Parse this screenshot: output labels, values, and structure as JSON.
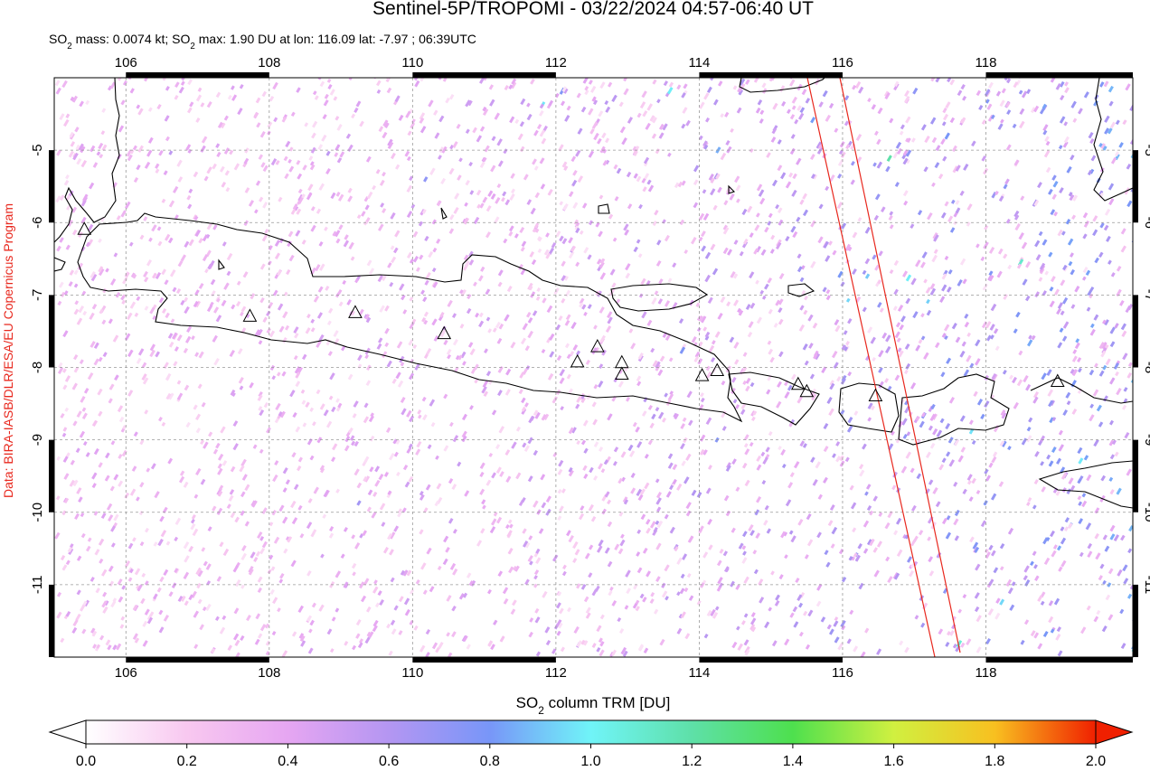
{
  "chart_data": {
    "type": "map",
    "title": "Sentinel-5P/TROPOMI - 03/22/2024 04:57-06:40 UT",
    "subtitle": [
      "SO",
      "2",
      " mass: 0.0074 kt; SO",
      "2",
      " max: 1.90 DU at lon: 116.09 lat: -7.97 ; 06:39UTC"
    ],
    "credit": "Data: BIRA-IASB/DLR/ESA/EU Copernicus Program",
    "xlim": [
      105,
      120.05
    ],
    "ylim": [
      -12,
      -4
    ],
    "xticks": [
      106,
      108,
      110,
      112,
      114,
      116,
      118
    ],
    "yticks": [
      -5,
      -6,
      -7,
      -8,
      -9,
      -10,
      -11
    ],
    "grid": true,
    "volcanoes": {
      "lon": [
        105.42,
        107.73,
        109.2,
        110.44,
        112.3,
        112.58,
        112.92,
        112.92,
        114.04,
        114.25,
        115.38,
        115.5,
        116.46,
        119.0
      ],
      "lat": [
        -6.1,
        -7.3,
        -7.25,
        -7.54,
        -7.93,
        -7.72,
        -7.94,
        -8.1,
        -8.12,
        -8.05,
        -8.24,
        -8.34,
        -8.4,
        -8.2
      ]
    },
    "colorbar": {
      "label": [
        "SO",
        "2",
        " column TRM [DU]"
      ],
      "lim": [
        0,
        2
      ],
      "ticks": [
        {
          "value": 0,
          "label": "0.0"
        },
        {
          "value": 0.2,
          "label": "0.2"
        },
        {
          "value": 0.4,
          "label": "0.4"
        },
        {
          "value": 0.6,
          "label": "0.6"
        },
        {
          "value": 0.8,
          "label": "0.8"
        },
        {
          "value": 1,
          "label": "1.0"
        },
        {
          "value": 1.2,
          "label": "1.2"
        },
        {
          "value": 1.4,
          "label": "1.4"
        },
        {
          "value": 1.6,
          "label": "1.6"
        },
        {
          "value": 1.8,
          "label": "1.8"
        },
        {
          "value": 2,
          "label": "2.0"
        }
      ],
      "colormap": [
        "#ffffff",
        "#f8c8f0",
        "#e6a6f2",
        "#b496f2",
        "#7896f8",
        "#70f4f8",
        "#5ee0a8",
        "#4ee04e",
        "#d0f040",
        "#f8c020",
        "#f02000"
      ]
    }
  }
}
